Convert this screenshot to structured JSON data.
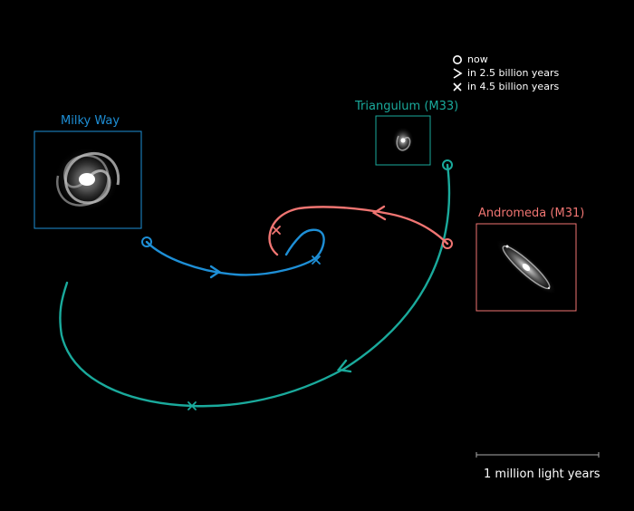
{
  "labels": {
    "milky_way": "Milky Way",
    "triangulum": "Triangulum (M33)",
    "andromeda": "Andromeda (M31)"
  },
  "legend": [
    {
      "symbol": "circle-icon",
      "text": "now"
    },
    {
      "symbol": "chevron-icon",
      "text": "in 2.5 billion years"
    },
    {
      "symbol": "cross-icon",
      "text": "in 4.5 billion years"
    }
  ],
  "scale_bar": {
    "label": "1 million light years"
  },
  "colors": {
    "milky_way": "#1e8fd6",
    "andromeda": "#f07572",
    "triangulum": "#1aaa9c",
    "background": "#000000"
  }
}
